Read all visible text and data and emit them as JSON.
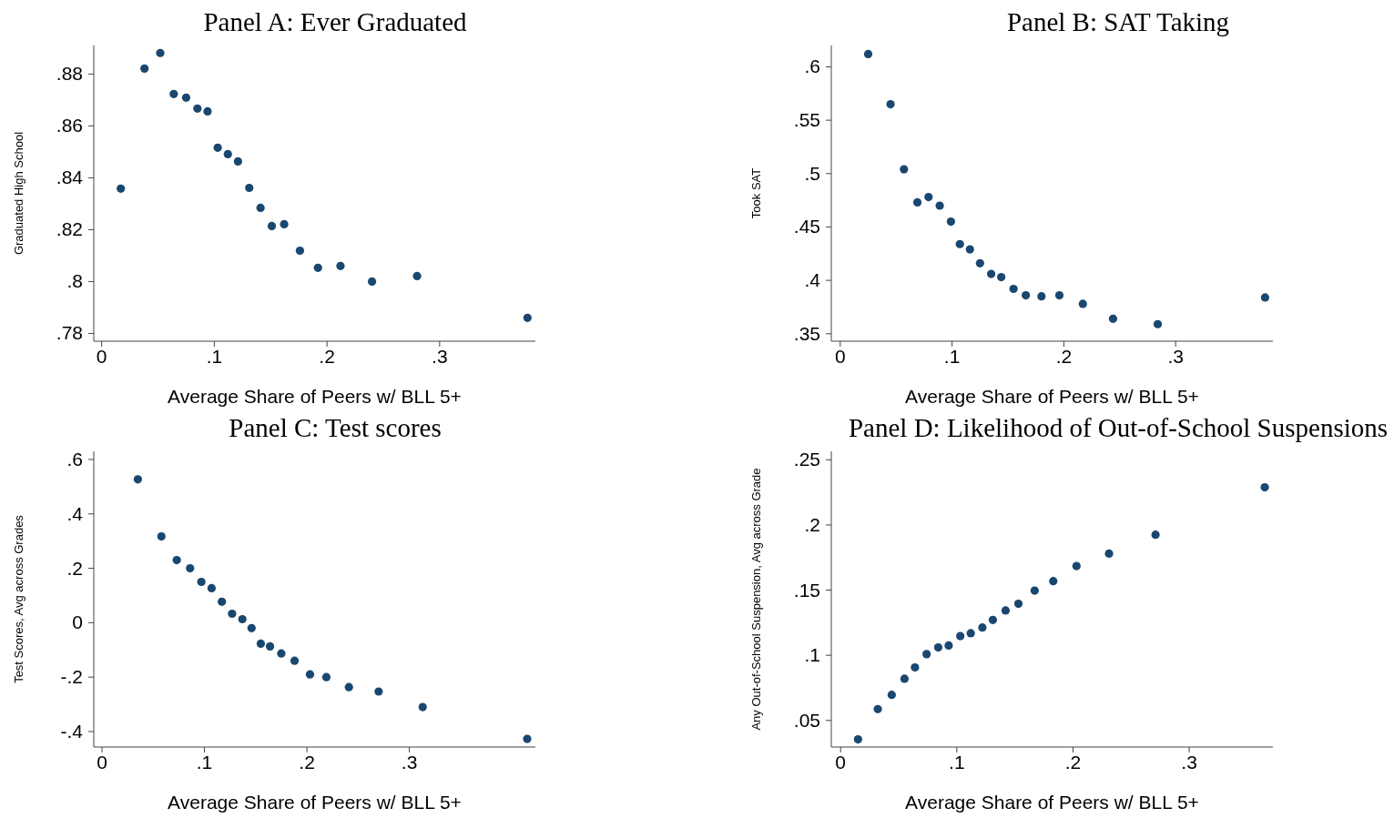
{
  "chart_data": [
    {
      "type": "scatter",
      "title": "Panel A: Ever Graduated",
      "xlabel": "Average Share of Peers w/ BLL 5+",
      "ylabel": "Graduated High School",
      "color": "#1a476f",
      "marker": "circle",
      "grid": false,
      "legend": false,
      "x": [
        0.017,
        0.038,
        0.052,
        0.064,
        0.075,
        0.085,
        0.094,
        0.103,
        0.112,
        0.121,
        0.131,
        0.141,
        0.151,
        0.162,
        0.176,
        0.192,
        0.212,
        0.24,
        0.28,
        0.378
      ],
      "values": [
        0.8358,
        0.8821,
        0.8881,
        0.8723,
        0.8709,
        0.8667,
        0.8656,
        0.8516,
        0.8491,
        0.8463,
        0.8361,
        0.8284,
        0.8214,
        0.8221,
        0.8119,
        0.8053,
        0.806,
        0.8,
        0.8021,
        0.786
      ],
      "xlim": [
        -0.007,
        0.385
      ],
      "xticks": [
        {
          "value": 0,
          "label": "0"
        },
        {
          "value": 0.1,
          "label": ".1"
        },
        {
          "value": 0.2,
          "label": ".2"
        },
        {
          "value": 0.3,
          "label": ".3"
        }
      ],
      "ylim": [
        0.777,
        0.891
      ],
      "yticks": [
        {
          "value": 0.78,
          "label": ".78"
        },
        {
          "value": 0.8,
          "label": ".8"
        },
        {
          "value": 0.82,
          "label": ".82"
        },
        {
          "value": 0.84,
          "label": ".84"
        },
        {
          "value": 0.86,
          "label": ".86"
        },
        {
          "value": 0.88,
          "label": ".88"
        }
      ]
    },
    {
      "type": "scatter",
      "title": "Panel B: SAT Taking",
      "xlabel": "Average Share of Peers w/ BLL 5+",
      "ylabel": "Took SAT",
      "color": "#1a476f",
      "marker": "circle",
      "grid": false,
      "legend": false,
      "x": [
        0.025,
        0.045,
        0.057,
        0.069,
        0.079,
        0.089,
        0.099,
        0.107,
        0.116,
        0.125,
        0.135,
        0.144,
        0.155,
        0.166,
        0.18,
        0.196,
        0.217,
        0.244,
        0.284,
        0.38
      ],
      "values": [
        0.612,
        0.565,
        0.504,
        0.473,
        0.478,
        0.47,
        0.455,
        0.434,
        0.429,
        0.416,
        0.406,
        0.403,
        0.392,
        0.386,
        0.385,
        0.386,
        0.378,
        0.364,
        0.359,
        0.384
      ],
      "xlim": [
        -0.008,
        0.387
      ],
      "xticks": [
        {
          "value": 0,
          "label": "0"
        },
        {
          "value": 0.1,
          "label": ".1"
        },
        {
          "value": 0.2,
          "label": ".2"
        },
        {
          "value": 0.3,
          "label": ".3"
        }
      ],
      "ylim": [
        0.343,
        0.62
      ],
      "yticks": [
        {
          "value": 0.35,
          "label": ".35"
        },
        {
          "value": 0.4,
          "label": ".4"
        },
        {
          "value": 0.45,
          "label": ".45"
        },
        {
          "value": 0.5,
          "label": ".5"
        },
        {
          "value": 0.55,
          "label": ".55"
        },
        {
          "value": 0.6,
          "label": ".6"
        }
      ]
    },
    {
      "type": "scatter",
      "title": "Panel C: Test scores",
      "xlabel": "Average Share of Peers w/ BLL 5+",
      "ylabel": "Test Scores, Avg across Grades",
      "color": "#1a476f",
      "marker": "circle",
      "grid": false,
      "legend": false,
      "x": [
        0.035,
        0.058,
        0.073,
        0.086,
        0.097,
        0.107,
        0.117,
        0.127,
        0.137,
        0.146,
        0.155,
        0.164,
        0.175,
        0.188,
        0.203,
        0.219,
        0.241,
        0.27,
        0.313,
        0.415
      ],
      "values": [
        0.527,
        0.317,
        0.23,
        0.2,
        0.15,
        0.127,
        0.077,
        0.033,
        0.013,
        -0.02,
        -0.077,
        -0.087,
        -0.113,
        -0.14,
        -0.19,
        -0.2,
        -0.237,
        -0.253,
        -0.31,
        -0.427
      ],
      "xlim": [
        -0.008,
        0.423
      ],
      "xticks": [
        {
          "value": 0,
          "label": "0"
        },
        {
          "value": 0.1,
          "label": ".1"
        },
        {
          "value": 0.2,
          "label": ".2"
        },
        {
          "value": 0.3,
          "label": ".3"
        }
      ],
      "ylim": [
        -0.457,
        0.63
      ],
      "yticks": [
        {
          "value": -0.4,
          "label": "-.4"
        },
        {
          "value": -0.2,
          "label": "-.2"
        },
        0,
        {
          "value": 0.2,
          "label": ".2"
        },
        {
          "value": 0.4,
          "label": ".4"
        },
        {
          "value": 0.6,
          "label": ".6"
        }
      ]
    },
    {
      "type": "scatter",
      "title": "Panel D: Likelihood of Out-of-School Suspensions",
      "xlabel": "Average Share of Peers w/ BLL 5+",
      "ylabel": "Any Out-of-School Suspension, Avg across Grade",
      "color": "#1a476f",
      "marker": "circle",
      "grid": false,
      "legend": false,
      "x": [
        0.015,
        0.032,
        0.044,
        0.055,
        0.064,
        0.074,
        0.084,
        0.093,
        0.103,
        0.112,
        0.122,
        0.131,
        0.142,
        0.153,
        0.167,
        0.183,
        0.203,
        0.231,
        0.271,
        0.365
      ],
      "values": [
        0.0355,
        0.0587,
        0.0696,
        0.082,
        0.0907,
        0.1009,
        0.106,
        0.1075,
        0.1147,
        0.1169,
        0.1213,
        0.1271,
        0.1344,
        0.1395,
        0.1496,
        0.1569,
        0.1685,
        0.178,
        0.1925,
        0.2289
      ],
      "xlim": [
        -0.008,
        0.372
      ],
      "xticks": [
        {
          "value": 0,
          "label": "0"
        },
        {
          "value": 0.1,
          "label": ".1"
        },
        {
          "value": 0.2,
          "label": ".2"
        },
        {
          "value": 0.3,
          "label": ".3"
        }
      ],
      "ylim": [
        0.0296,
        0.2565
      ],
      "yticks": [
        {
          "value": 0.05,
          "label": ".05"
        },
        {
          "value": 0.1,
          "label": ".1"
        },
        {
          "value": 0.15,
          "label": ".15"
        },
        {
          "value": 0.2,
          "label": ".2"
        },
        {
          "value": 0.25,
          "label": ".25"
        }
      ]
    }
  ]
}
